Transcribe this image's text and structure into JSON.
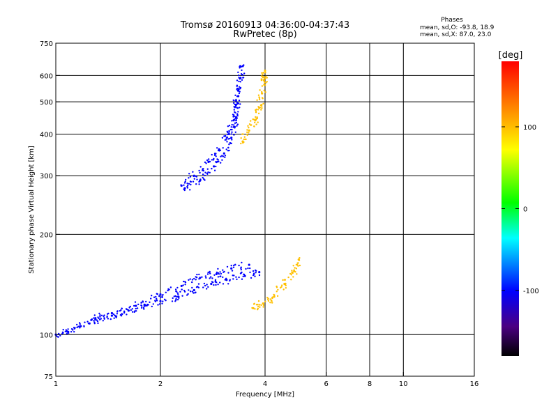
{
  "chart_data": {
    "type": "scatter",
    "title": "Tromsø 20160913 04:36:00-04:37:43",
    "subtitle": "RwPretec (8p)",
    "xlabel": "Frequency [MHz]",
    "ylabel": "Stationary phase Virtual Height [km]",
    "x_scale": "log",
    "y_scale": "log",
    "xlim": [
      1,
      16
    ],
    "ylim": [
      75,
      750
    ],
    "x_ticks": [
      1,
      2,
      4,
      6,
      8,
      10,
      16
    ],
    "y_ticks": [
      75,
      100,
      200,
      300,
      400,
      500,
      600,
      750
    ],
    "x_gridlines": [
      2,
      4,
      6,
      8,
      10
    ],
    "y_gridlines": [
      100,
      200,
      300,
      400,
      500,
      600
    ],
    "grid": true,
    "stats": {
      "heading": "Phases",
      "line_o": "mean, sd,O: -93.8, 18.9",
      "line_x": "mean, sd,X:  87.0, 23.0"
    },
    "colorbar": {
      "label": "[deg]",
      "range": [
        -180,
        180
      ],
      "ticks": [
        100,
        0,
        -100
      ],
      "colormap": "rainbow"
    },
    "series": [
      {
        "mode": "O",
        "color_deg": -100,
        "traces": [
          {
            "x": [
              1.0,
              1.08,
              1.18,
              1.3,
              1.45,
              1.62,
              1.8,
              2.0,
              2.25,
              2.5,
              2.8,
              3.1,
              3.5,
              3.85
            ],
            "y": [
              100,
              102,
              106,
              112,
              116,
              118,
              122,
              126,
              130,
              136,
              142,
              146,
              150,
              154
            ]
          },
          {
            "x": [
              1.25,
              1.45,
              1.7,
              2.0,
              2.3,
              2.6,
              2.9,
              3.2,
              3.6
            ],
            "y": [
              108,
              114,
              122,
              132,
              140,
              148,
              152,
              158,
              162
            ]
          },
          {
            "x": [
              2.3,
              2.5,
              2.75,
              2.95,
              3.15,
              3.25,
              3.3,
              3.35,
              3.4,
              3.45
            ],
            "y": [
              280,
              300,
              330,
              360,
              400,
              440,
              490,
              540,
              590,
              640
            ]
          },
          {
            "x": [
              2.35,
              2.6,
              2.85,
              3.05,
              3.2,
              3.3,
              3.35
            ],
            "y": [
              275,
              290,
              320,
              350,
              390,
              450,
              520
            ]
          }
        ]
      },
      {
        "mode": "X",
        "color_deg": 100,
        "traces": [
          {
            "x": [
              3.45,
              3.6,
              3.75,
              3.85,
              3.92,
              3.97,
              4.0
            ],
            "y": [
              380,
              410,
              440,
              480,
              530,
              580,
              620
            ]
          },
          {
            "x": [
              3.7,
              3.95,
              4.25,
              4.55,
              4.85,
              5.0
            ],
            "y": [
              120,
              124,
              130,
              142,
              155,
              168
            ]
          }
        ]
      }
    ]
  }
}
